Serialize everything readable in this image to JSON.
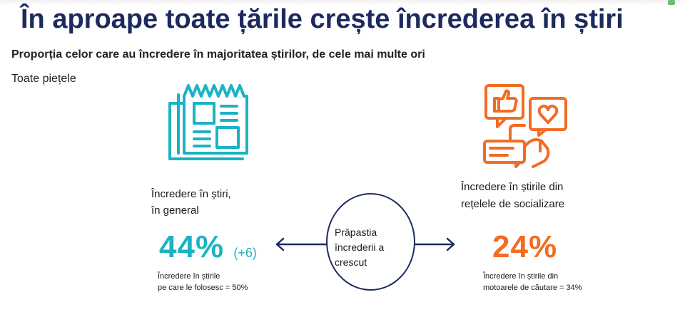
{
  "title": "În aproape toate țările crește încrederea în știri",
  "subtitle": "Proporția celor care au încredere în majoritatea știrilor, de cele mai multe ori",
  "scope": "Toate piețele",
  "left": {
    "label_line1": "Încredere în știri,",
    "label_line2": "în general",
    "value": "44%",
    "change": "(+6)",
    "note_line1": "Încredere în știrile",
    "note_line2": "pe care le folosesc = 50%",
    "icon": "newspaper-icon"
  },
  "center": {
    "line1": "Prăpastia",
    "line2": "încrederii a",
    "line3": "crescut"
  },
  "right": {
    "label_line1": "Încredere în știrile din",
    "label_line2": "rețelele de socializare",
    "value": "24%",
    "note_line1": "Încredere în știrile din",
    "note_line2": "motoarele de căutare = 34%",
    "icon": "social-media-icon"
  },
  "colors": {
    "title": "#1c2a5e",
    "teal": "#1bb3c4",
    "orange": "#f26c23",
    "navy": "#1c2a5e"
  }
}
